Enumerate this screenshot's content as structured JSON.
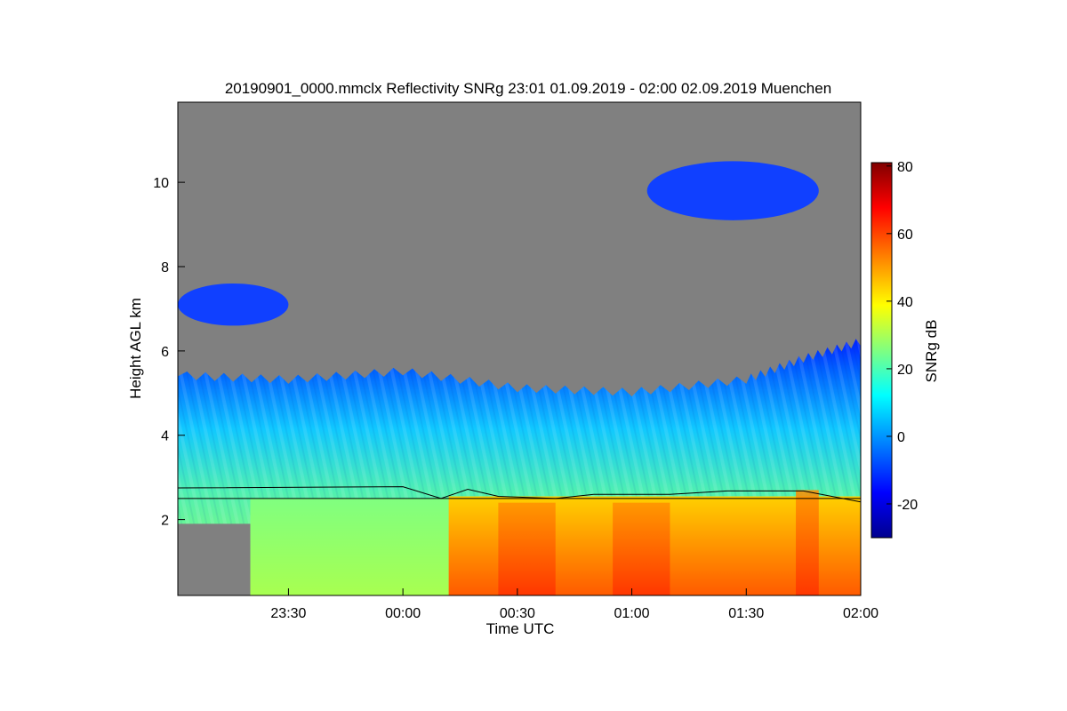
{
  "chart_data": {
    "type": "heatmap",
    "title": "20190901_0000.mmclx Reflectivity SNRg   23:01 01.09.2019 - 02:00 02.09.2019 Muenchen",
    "xlabel": "Time UTC",
    "ylabel": "Height AGL km",
    "colorbar_label": "SNRg dB",
    "x_range_minutes": [
      -59,
      120
    ],
    "y_range_km": [
      0.2,
      11.9
    ],
    "x_ticks": [
      {
        "minutes": -30,
        "label": "23:30"
      },
      {
        "minutes": 0,
        "label": "00:00"
      },
      {
        "minutes": 30,
        "label": "00:30"
      },
      {
        "minutes": 60,
        "label": "01:00"
      },
      {
        "minutes": 90,
        "label": "01:30"
      },
      {
        "minutes": 120,
        "label": "02:00"
      }
    ],
    "y_ticks": [
      {
        "km": 2,
        "label": "2"
      },
      {
        "km": 4,
        "label": "4"
      },
      {
        "km": 6,
        "label": "6"
      },
      {
        "km": 8,
        "label": "8"
      },
      {
        "km": 10,
        "label": "10"
      }
    ],
    "colorbar_range": [
      -30,
      81
    ],
    "colorbar_ticks": [
      {
        "value": -20,
        "label": "-20"
      },
      {
        "value": 0,
        "label": "0"
      },
      {
        "value": 20,
        "label": "20"
      },
      {
        "value": 40,
        "label": "40"
      },
      {
        "value": 60,
        "label": "60"
      },
      {
        "value": 80,
        "label": "80"
      }
    ],
    "no_signal_color": "#808080",
    "colormap": [
      "#00008f",
      "#0000ff",
      "#0080ff",
      "#00ffff",
      "#80ff80",
      "#ffff00",
      "#ff8000",
      "#ff0000",
      "#800000"
    ],
    "reference_line_km": 2.5,
    "overlay_line_km": [
      {
        "minutes": -59,
        "km": 2.75
      },
      {
        "minutes": 0,
        "km": 2.78
      },
      {
        "minutes": 10,
        "km": 2.5
      },
      {
        "minutes": 17,
        "km": 2.72
      },
      {
        "minutes": 25,
        "km": 2.55
      },
      {
        "minutes": 40,
        "km": 2.5
      },
      {
        "minutes": 50,
        "km": 2.6
      },
      {
        "minutes": 70,
        "km": 2.6
      },
      {
        "minutes": 85,
        "km": 2.68
      },
      {
        "minutes": 105,
        "km": 2.68
      },
      {
        "minutes": 120,
        "km": 2.42
      }
    ],
    "echo_regions": [
      {
        "name": "main-cloud-top-km",
        "profile": [
          {
            "minutes": -59,
            "km": 5.4
          },
          {
            "minutes": -30,
            "km": 5.3
          },
          {
            "minutes": 0,
            "km": 5.5
          },
          {
            "minutes": 30,
            "km": 5.1
          },
          {
            "minutes": 60,
            "km": 5.0
          },
          {
            "minutes": 90,
            "km": 5.3
          },
          {
            "minutes": 105,
            "km": 5.8
          },
          {
            "minutes": 120,
            "km": 6.2
          }
        ]
      },
      {
        "name": "upper-cirrus-layer",
        "minutes": [
          64,
          109
        ],
        "km": [
          9.1,
          10.5
        ],
        "snr_db": -10
      },
      {
        "name": "mid-level-cloud-left",
        "minutes": [
          -59,
          -30
        ],
        "km": [
          6.6,
          7.6
        ],
        "snr_db": -10
      },
      {
        "name": "rain-core-00:30",
        "minutes": [
          25,
          40
        ],
        "km": [
          0.2,
          2.4
        ],
        "snr_db": 62
      },
      {
        "name": "rain-core-01:00",
        "minutes": [
          55,
          70
        ],
        "km": [
          0.2,
          2.4
        ],
        "snr_db": 55
      },
      {
        "name": "rain-core-01:45",
        "minutes": [
          103,
          109
        ],
        "km": [
          0.2,
          2.7
        ],
        "snr_db": 58
      }
    ]
  }
}
